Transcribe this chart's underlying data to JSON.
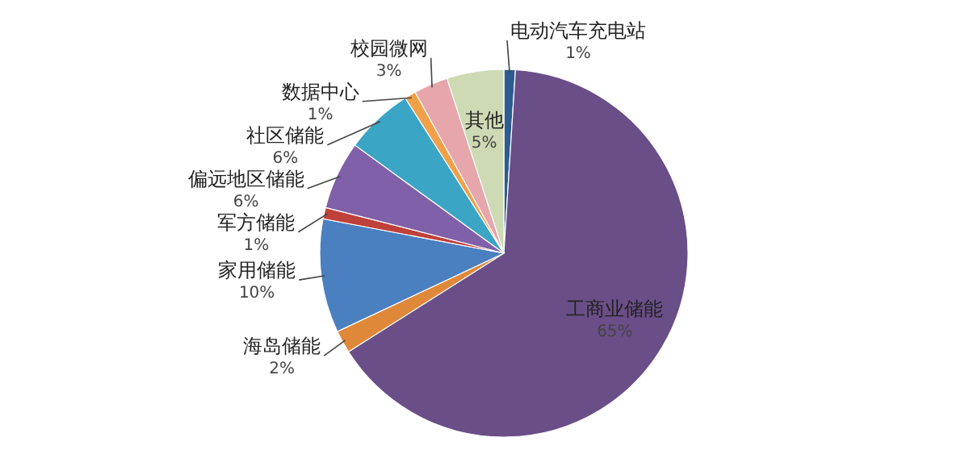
{
  "chart_data": {
    "type": "pie",
    "categories": [
      "电动汽车充电站",
      "工商业储能",
      "海岛储能",
      "家用储能",
      "军方储能",
      "偏远地区储能",
      "社区储能",
      "数据中心",
      "校园微网",
      "其他"
    ],
    "values": [
      1,
      65,
      2,
      10,
      1,
      6,
      6,
      1,
      3,
      5
    ],
    "value_labels": [
      "1%",
      "65%",
      "2%",
      "10%",
      "1%",
      "6%",
      "6%",
      "1%",
      "3%",
      "5%"
    ],
    "colors": [
      "#2f5c8f",
      "#6a4e88",
      "#e0883a",
      "#4a7fc0",
      "#c0403a",
      "#8060a8",
      "#3aa5c5",
      "#f0a048",
      "#e6a6ac",
      "#cddab4"
    ]
  }
}
